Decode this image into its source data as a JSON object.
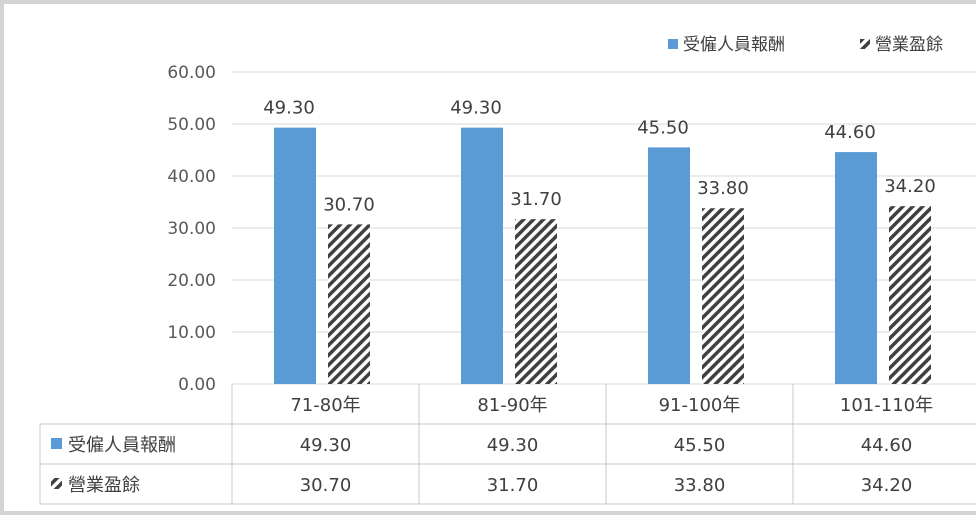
{
  "chart_data": {
    "type": "bar",
    "categories": [
      "71-80年",
      "81-90年",
      "91-100年",
      "101-110年"
    ],
    "series": [
      {
        "name": "受僱人員報酬",
        "values": [
          49.3,
          49.3,
          45.5,
          44.6
        ],
        "color": "#5b9bd5",
        "pattern": "solid"
      },
      {
        "name": "營業盈餘",
        "values": [
          30.7,
          31.7,
          33.8,
          34.2
        ],
        "color": "#404040",
        "pattern": "diagonal-hatch"
      }
    ],
    "yticks": [
      "0.00",
      "10.00",
      "20.00",
      "30.00",
      "40.00",
      "50.00",
      "60.00"
    ],
    "ylim": [
      0,
      60
    ],
    "data_labels": [
      [
        "49.30",
        "49.30",
        "45.50",
        "44.60"
      ],
      [
        "30.70",
        "31.70",
        "33.80",
        "34.20"
      ]
    ],
    "legend": {
      "placement": "top-right",
      "entries": [
        "受僱人員報酬",
        "營業盈餘"
      ]
    },
    "data_table": true,
    "grid": true,
    "gridline_color": "#d9d9d9"
  }
}
